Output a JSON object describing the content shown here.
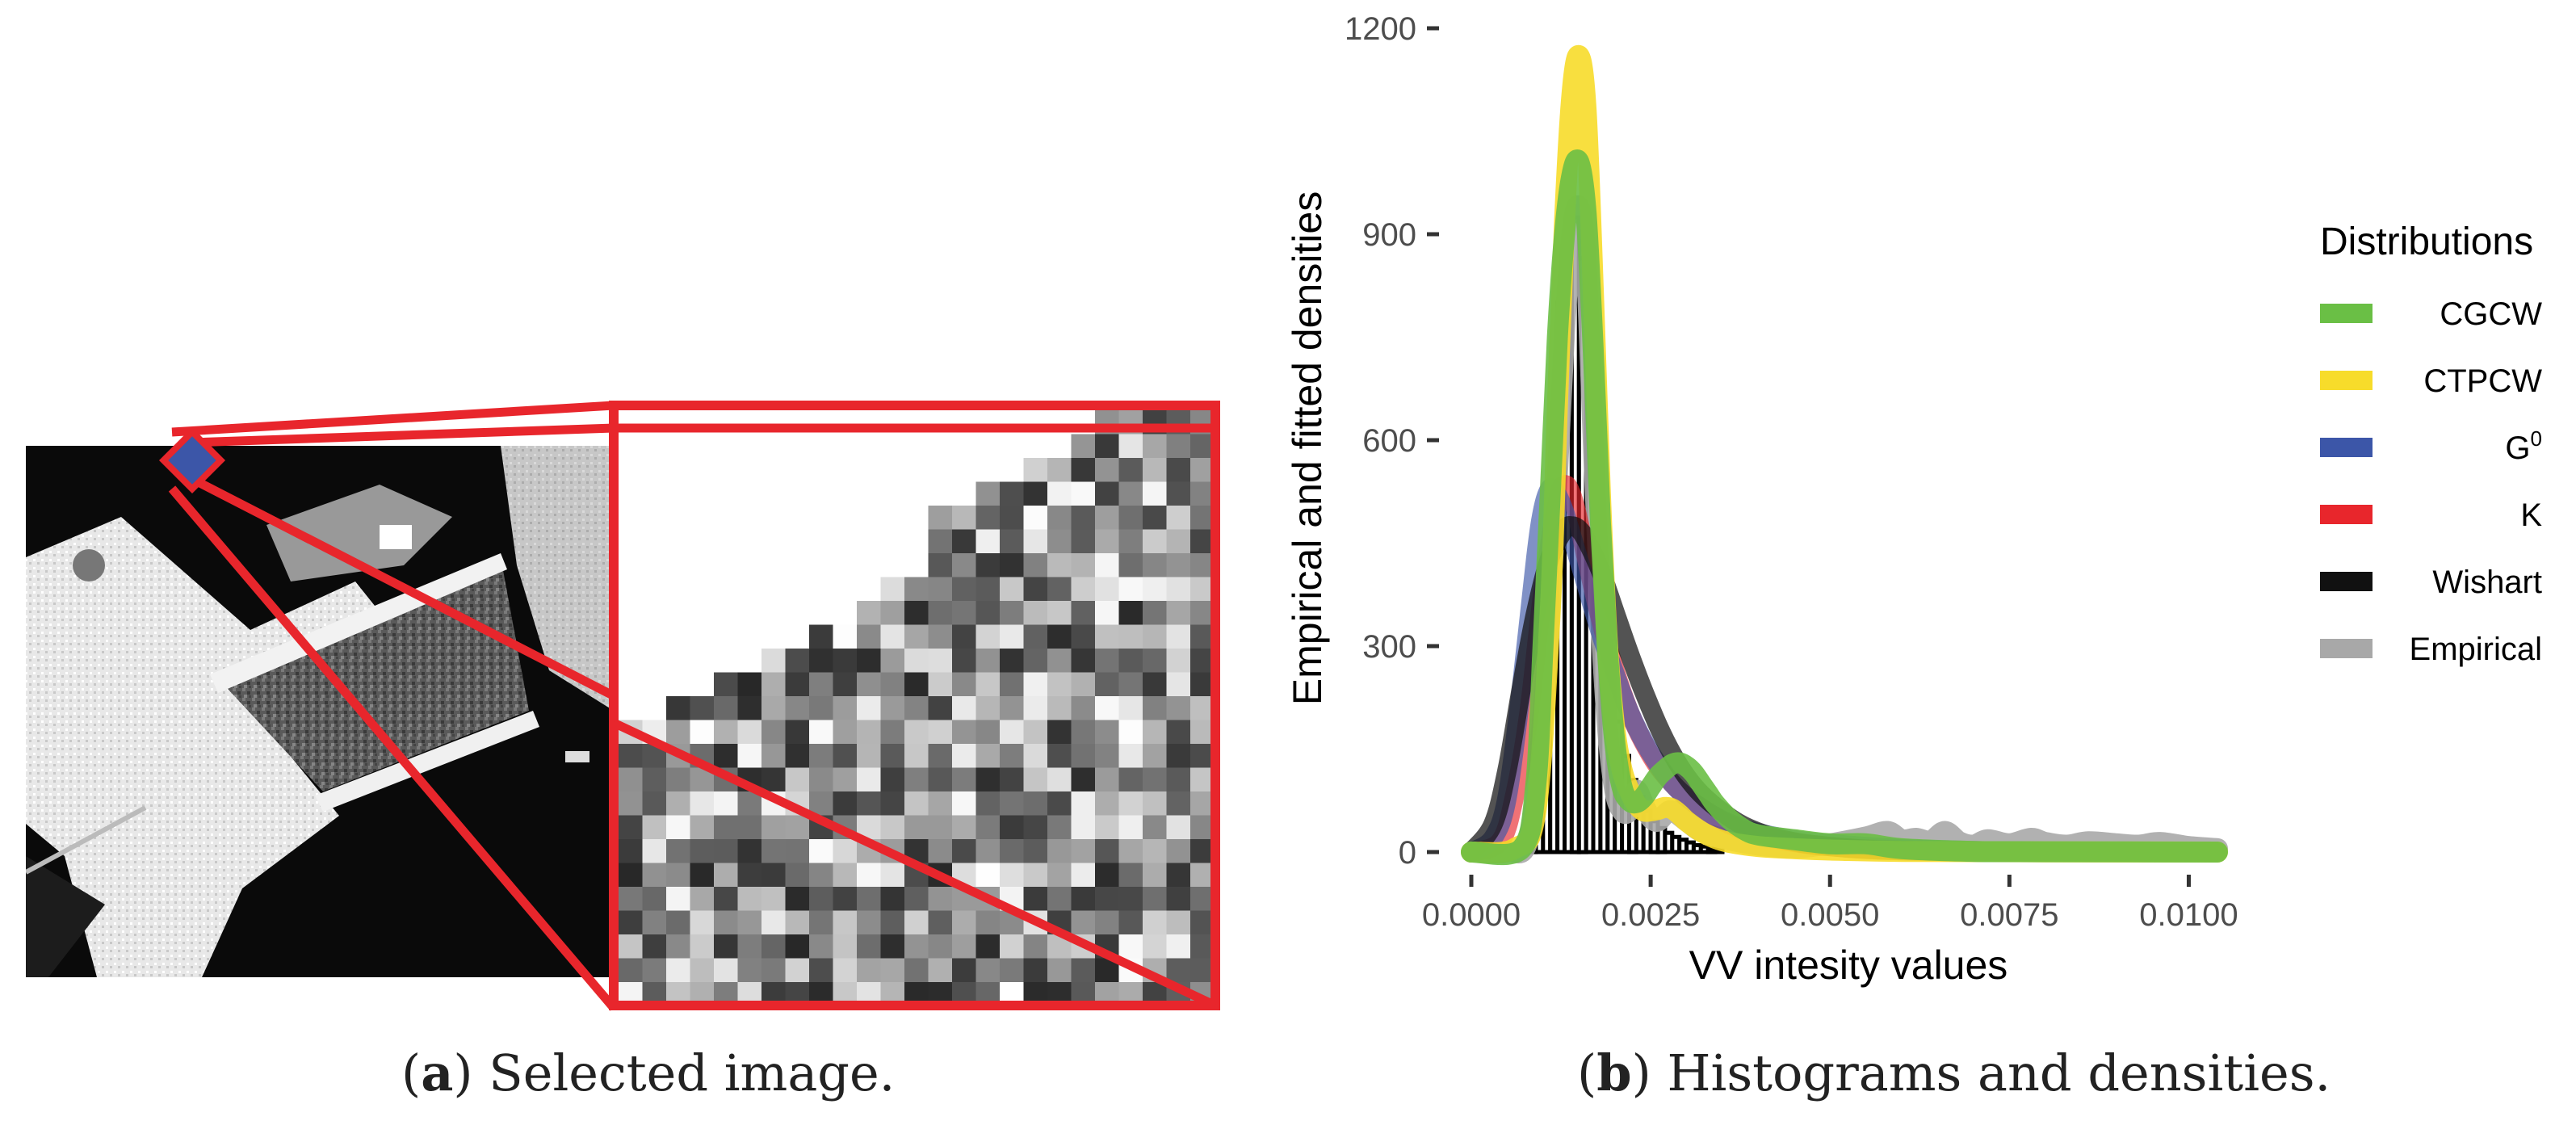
{
  "captions": {
    "a": {
      "label": "a",
      "text": "Selected image."
    },
    "b": {
      "label": "b",
      "text": "Histograms and densities."
    }
  },
  "chart_data": {
    "type": "histogram-with-density-lines",
    "title": "",
    "xlabel": "VV intesity values",
    "ylabel": "Empirical and fitted densities",
    "xlim": [
      0.0,
      0.0104
    ],
    "ylim": [
      0,
      1200
    ],
    "x_ticks": [
      0.0,
      0.0025,
      0.005,
      0.0075,
      0.01
    ],
    "x_tick_labels": [
      "0.0000",
      "0.0025",
      "0.0050",
      "0.0075",
      "0.0100"
    ],
    "y_ticks": [
      0,
      300,
      600,
      900,
      1200
    ],
    "y_tick_labels": [
      "0",
      "300",
      "600",
      "900",
      "1200"
    ],
    "legend": {
      "title": "Distributions",
      "position": "right",
      "entries": [
        {
          "name": "CGCW",
          "color": "#6abf45"
        },
        {
          "name": "CTPCW",
          "color": "#f7dc2a"
        },
        {
          "name": "G",
          "superscript": "0",
          "color": "#3c56a8"
        },
        {
          "name": "K",
          "color": "#e8262c"
        },
        {
          "name": "Wishart",
          "color": "#111111"
        },
        {
          "name": "Empirical",
          "color": "#a8a8a8"
        }
      ]
    },
    "histogram": {
      "bin_width": 0.0001,
      "bins_x": [
        0.0008,
        0.0009,
        0.001,
        0.0011,
        0.0012,
        0.0013,
        0.0014,
        0.0015,
        0.0016,
        0.0017,
        0.0018,
        0.0019,
        0.002,
        0.0021,
        0.0022,
        0.0023,
        0.0024,
        0.0025,
        0.0026,
        0.0027,
        0.0028,
        0.0029,
        0.003,
        0.0031,
        0.0032,
        0.0033,
        0.0034
      ],
      "bins_y": [
        15,
        60,
        200,
        520,
        800,
        840,
        925,
        865,
        720,
        560,
        400,
        280,
        190,
        140,
        105,
        80,
        60,
        45,
        35,
        28,
        22,
        18,
        14,
        10,
        8,
        5,
        3
      ]
    },
    "series": [
      {
        "name": "Empirical",
        "x": [
          0,
          0.0005,
          0.0008,
          0.001,
          0.0012,
          0.0013,
          0.0014,
          0.0015,
          0.0016,
          0.0017,
          0.0018,
          0.0019,
          0.002,
          0.0021,
          0.0022,
          0.0023,
          0.0024,
          0.0025,
          0.0026,
          0.0027,
          0.0028,
          0.003,
          0.0032,
          0.0035,
          0.004,
          0.0045,
          0.005,
          0.0055,
          0.0058,
          0.006,
          0.0062,
          0.0064,
          0.0066,
          0.0068,
          0.007,
          0.0072,
          0.0075,
          0.0078,
          0.008,
          0.0083,
          0.0086,
          0.009,
          0.0093,
          0.0096,
          0.01,
          0.0104
        ],
        "y": [
          0,
          0,
          20,
          200,
          550,
          760,
          900,
          940,
          860,
          600,
          350,
          180,
          90,
          60,
          60,
          90,
          70,
          50,
          45,
          55,
          60,
          45,
          30,
          20,
          10,
          6,
          12,
          22,
          30,
          18,
          20,
          16,
          30,
          15,
          10,
          18,
          12,
          20,
          14,
          10,
          15,
          12,
          10,
          14,
          8,
          5
        ]
      },
      {
        "name": "K",
        "x": [
          0,
          0.0004,
          0.0006,
          0.0008,
          0.001,
          0.0012,
          0.0013,
          0.0014,
          0.0015,
          0.0016,
          0.0018,
          0.002,
          0.0022,
          0.0024,
          0.0026,
          0.0028,
          0.003,
          0.0033,
          0.0036,
          0.004,
          0.0045,
          0.005,
          0.006,
          0.007,
          0.008,
          0.009,
          0.01,
          0.0104
        ],
        "y": [
          0,
          15,
          80,
          200,
          380,
          510,
          535,
          520,
          480,
          430,
          340,
          265,
          205,
          160,
          125,
          100,
          80,
          58,
          40,
          25,
          14,
          8,
          3,
          1,
          0.5,
          0.3,
          0.2,
          0.1
        ]
      },
      {
        "name": "G0",
        "x": [
          0,
          0.0003,
          0.0005,
          0.0007,
          0.0009,
          0.001,
          0.0011,
          0.0012,
          0.0013,
          0.0014,
          0.0016,
          0.0018,
          0.002,
          0.0022,
          0.0024,
          0.0026,
          0.0028,
          0.003,
          0.0033,
          0.0036,
          0.004,
          0.0045,
          0.005,
          0.006,
          0.007,
          0.008,
          0.009,
          0.01,
          0.0104
        ],
        "y": [
          0,
          20,
          80,
          240,
          430,
          500,
          530,
          520,
          495,
          460,
          390,
          320,
          260,
          205,
          162,
          128,
          100,
          80,
          58,
          42,
          28,
          18,
          12,
          5,
          2,
          1,
          0.5,
          0.3,
          0.2
        ]
      },
      {
        "name": "Wishart",
        "x": [
          0,
          0.0003,
          0.0005,
          0.0007,
          0.0009,
          0.0011,
          0.0013,
          0.0014,
          0.0015,
          0.0016,
          0.0018,
          0.002,
          0.0022,
          0.0024,
          0.0026,
          0.0028,
          0.003,
          0.0032,
          0.0035,
          0.0038,
          0.0042,
          0.0046,
          0.005,
          0.0055,
          0.006,
          0.007,
          0.008,
          0.009,
          0.01,
          0.0104
        ],
        "y": [
          0,
          40,
          120,
          240,
          350,
          430,
          470,
          475,
          470,
          455,
          410,
          350,
          290,
          235,
          185,
          143,
          110,
          85,
          58,
          38,
          22,
          13,
          8,
          4,
          2,
          0.5,
          0.2,
          0.1,
          0,
          0
        ]
      },
      {
        "name": "CTPCW",
        "x": [
          0,
          0.0006,
          0.0009,
          0.0011,
          0.0012,
          0.0013,
          0.0014,
          0.0015,
          0.0016,
          0.0017,
          0.0018,
          0.0019,
          0.002,
          0.0021,
          0.0022,
          0.0023,
          0.0024,
          0.0025,
          0.0026,
          0.0027,
          0.0028,
          0.0029,
          0.003,
          0.0032,
          0.0034,
          0.0036,
          0.004,
          0.0045,
          0.005,
          0.006,
          0.008,
          0.0104
        ],
        "y": [
          0,
          5,
          60,
          350,
          650,
          920,
          1100,
          1160,
          1080,
          820,
          520,
          300,
          180,
          120,
          90,
          70,
          60,
          60,
          62,
          65,
          63,
          55,
          45,
          30,
          20,
          14,
          8,
          5,
          3,
          1,
          0.3,
          0
        ]
      },
      {
        "name": "CGCW",
        "x": [
          0,
          0.0007,
          0.0009,
          0.001,
          0.0011,
          0.0012,
          0.0013,
          0.0014,
          0.0015,
          0.0016,
          0.0017,
          0.0018,
          0.0019,
          0.002,
          0.0021,
          0.0022,
          0.0023,
          0.0024,
          0.0025,
          0.0026,
          0.0027,
          0.0028,
          0.0029,
          0.003,
          0.0031,
          0.0032,
          0.0033,
          0.0034,
          0.0036,
          0.0038,
          0.004,
          0.0045,
          0.005,
          0.0055,
          0.006,
          0.007,
          0.008,
          0.0104
        ],
        "y": [
          0,
          5,
          100,
          300,
          520,
          750,
          900,
          985,
          1005,
          930,
          730,
          480,
          290,
          160,
          95,
          75,
          72,
          80,
          95,
          110,
          120,
          128,
          130,
          125,
          115,
          100,
          85,
          70,
          48,
          33,
          25,
          18,
          12,
          12,
          5,
          1,
          0.5,
          0
        ]
      }
    ]
  }
}
